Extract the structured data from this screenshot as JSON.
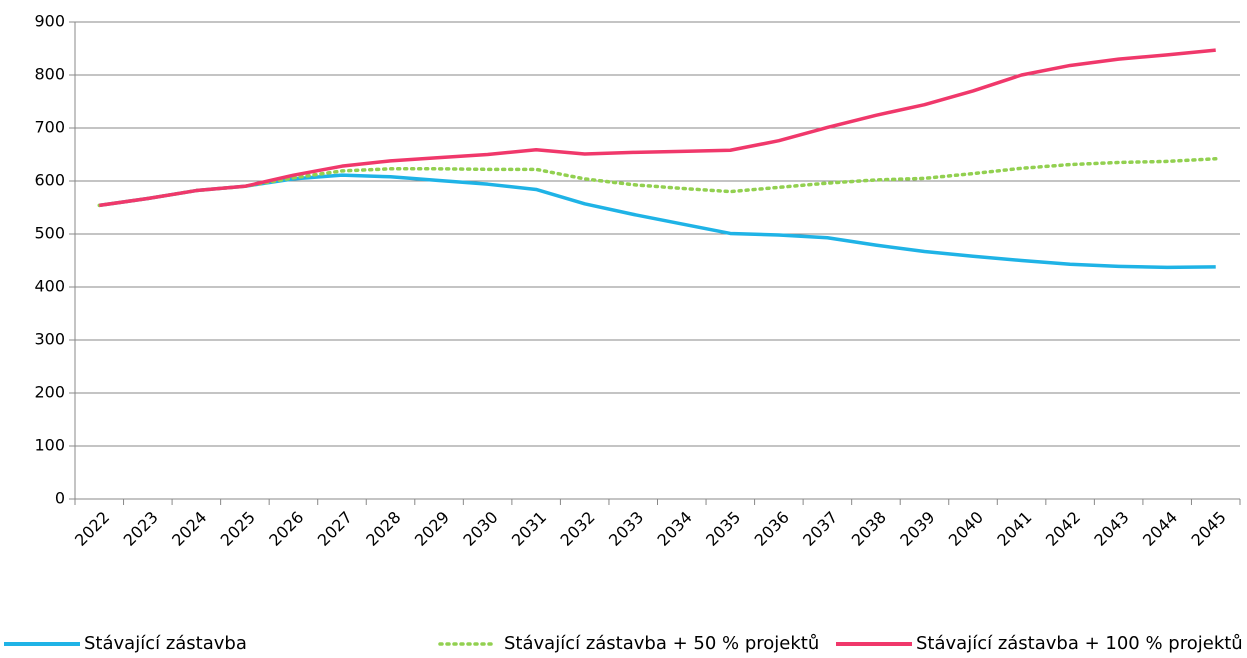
{
  "chart_data": {
    "type": "line",
    "categories": [
      "2022",
      "2023",
      "2024",
      "2025",
      "2026",
      "2027",
      "2028",
      "2029",
      "2030",
      "2031",
      "2032",
      "2033",
      "2034",
      "2035",
      "2036",
      "2037",
      "2038",
      "2039",
      "2040",
      "2041",
      "2042",
      "2043",
      "2044",
      "2045"
    ],
    "series": [
      {
        "name": "Stávající zástavba",
        "color": "#1fb3e6",
        "dash": "solid",
        "values": [
          554,
          567,
          582,
          590,
          604,
          611,
          608,
          601,
          594,
          584,
          557,
          537,
          519,
          501,
          498,
          493,
          479,
          467,
          458,
          450,
          443,
          439,
          437,
          438
        ]
      },
      {
        "name": "Stávající zástavba + 50 % projektů",
        "color": "#92d050",
        "dash": "dotted",
        "values": [
          554,
          567,
          582,
          590,
          606,
          619,
          623,
          623,
          622,
          622,
          604,
          593,
          586,
          580,
          588,
          596,
          602,
          605,
          614,
          624,
          631,
          635,
          637,
          642
        ]
      },
      {
        "name": "Stávající zástavba + 100 % projektů",
        "color": "#f0386b",
        "dash": "solid",
        "values": [
          554,
          567,
          582,
          590,
          611,
          628,
          638,
          644,
          650,
          659,
          651,
          654,
          656,
          658,
          676,
          701,
          724,
          744,
          770,
          800,
          818,
          830,
          838,
          847
        ]
      }
    ],
    "ylim": [
      0,
      900
    ],
    "yticks": [
      0,
      100,
      200,
      300,
      400,
      500,
      600,
      700,
      800,
      900
    ],
    "grid": true,
    "legend": "bottom"
  }
}
